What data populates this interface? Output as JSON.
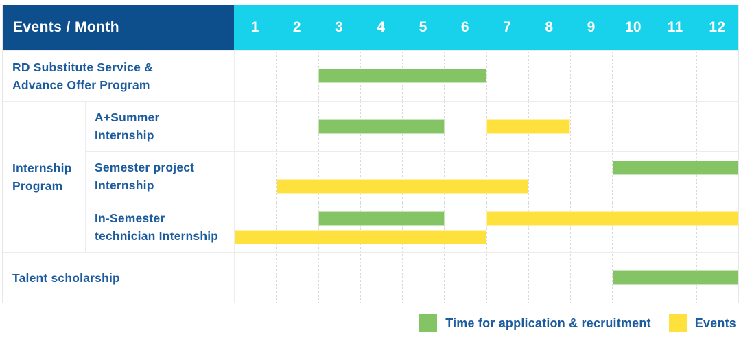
{
  "header": {
    "title": "Events / Month",
    "months": [
      "1",
      "2",
      "3",
      "4",
      "5",
      "6",
      "7",
      "8",
      "9",
      "10",
      "11",
      "12"
    ]
  },
  "legend": {
    "items": [
      {
        "key": "recruitment",
        "label": "Time for application & recruitment",
        "color": "#85c464",
        "swatch_icon": "green-square-icon"
      },
      {
        "key": "events",
        "label": "Events",
        "color": "#ffe13e",
        "swatch_icon": "yellow-square-icon"
      }
    ]
  },
  "colors": {
    "header_bg": "#0d4e8c",
    "months_bg": "#17d2ea",
    "header_text": "#ffffff",
    "label_text": "#1c5b9e",
    "recruitment": "#85c464",
    "events": "#ffe13e",
    "row_line": "#ececec",
    "column_line": "#d8d8d8"
  },
  "chart_data": {
    "type": "gantt",
    "title": "Events / Month",
    "x_axis": {
      "label": "Month",
      "ticks": [
        1,
        2,
        3,
        4,
        5,
        6,
        7,
        8,
        9,
        10,
        11,
        12
      ],
      "range": [
        1,
        12
      ]
    },
    "grid": true,
    "legend_position": "bottom-right",
    "series_legend": [
      {
        "series": "recruitment",
        "label": "Time for application & recruitment",
        "color": "#85c464"
      },
      {
        "series": "events",
        "label": "Events",
        "color": "#ffe13e"
      }
    ],
    "sections": [
      {
        "kind": "single",
        "label_lines": [
          "RD Substitute Service &",
          "Advance Offer Program"
        ],
        "tracks": [
          [
            {
              "series": "recruitment",
              "start_month": 3,
              "end_month": 6
            }
          ]
        ]
      },
      {
        "kind": "group",
        "group_label_lines": [
          "Internship",
          "Program"
        ],
        "rows": [
          {
            "label_lines": [
              "A+Summer",
              "Internship"
            ],
            "tracks": [
              [
                {
                  "series": "recruitment",
                  "start_month": 3,
                  "end_month": 5
                },
                {
                  "series": "events",
                  "start_month": 7,
                  "end_month": 8
                }
              ]
            ]
          },
          {
            "label_lines": [
              "Semester project",
              "Internship"
            ],
            "tracks": [
              [
                {
                  "series": "recruitment",
                  "start_month": 10,
                  "end_month": 12
                }
              ],
              [
                {
                  "series": "events",
                  "start_month": 2,
                  "end_month": 7
                }
              ]
            ]
          },
          {
            "label_lines": [
              "In-Semester",
              "technician Internship"
            ],
            "tracks": [
              [
                {
                  "series": "recruitment",
                  "start_month": 3,
                  "end_month": 5
                },
                {
                  "series": "events",
                  "start_month": 7,
                  "end_month": 12
                }
              ],
              [
                {
                  "series": "events",
                  "start_month": 1,
                  "end_month": 6
                }
              ]
            ]
          }
        ]
      },
      {
        "kind": "single",
        "label_lines": [
          "Talent scholarship"
        ],
        "tracks": [
          [
            {
              "series": "recruitment",
              "start_month": 10,
              "end_month": 12
            }
          ]
        ]
      }
    ]
  }
}
